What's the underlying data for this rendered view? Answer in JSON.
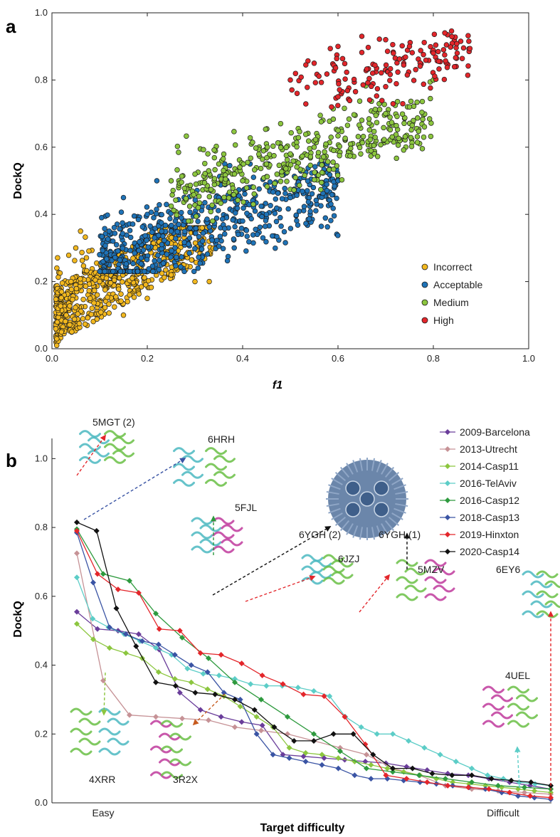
{
  "panels": [
    {
      "letter": "a",
      "type": "scatter",
      "xlabel": "f1",
      "ylabel": "DockQ",
      "xlim": [
        0,
        1
      ],
      "ylim": [
        0,
        1
      ],
      "xticks": [
        "0.0",
        "0.2",
        "0.4",
        "0.6",
        "0.8",
        "1.0"
      ],
      "yticks": [
        "0.0",
        "0.2",
        "0.4",
        "0.6",
        "0.8",
        "1.0"
      ],
      "legend_position": "bottom-right"
    },
    {
      "letter": "b",
      "type": "line",
      "xlabel": "Target difficulty",
      "ylabel": "DockQ",
      "x_tick_labels": [
        "Easy",
        "Difficult"
      ],
      "yticks": [
        "0.0",
        "0.2",
        "0.4",
        "0.6",
        "0.8",
        "1.0"
      ],
      "legend_position": "top-right"
    }
  ],
  "chart_data": [
    {
      "type": "scatter",
      "xlabel": "f1",
      "ylabel": "DockQ",
      "xlim": [
        0,
        1
      ],
      "ylim": [
        0,
        1
      ],
      "grid": false,
      "legend": "bottom-right",
      "series": [
        {
          "name": "Incorrect",
          "color": "#f2b81f",
          "count": 700,
          "sample_points": [
            [
              0.01,
              0.01
            ],
            [
              0.02,
              0.05
            ],
            [
              0.03,
              0.1
            ],
            [
              0.04,
              0.2
            ],
            [
              0.05,
              0.3
            ],
            [
              0.06,
              0.35
            ],
            [
              0.08,
              0.15
            ],
            [
              0.1,
              0.2
            ],
            [
              0.12,
              0.25
            ],
            [
              0.15,
              0.1
            ],
            [
              0.2,
              0.15
            ],
            [
              0.25,
              0.22
            ],
            [
              0.3,
              0.2
            ],
            [
              0.33,
              0.2
            ]
          ]
        },
        {
          "name": "Acceptable",
          "color": "#1f73b7",
          "count": 600,
          "sample_points": [
            [
              0.1,
              0.28
            ],
            [
              0.12,
              0.35
            ],
            [
              0.15,
              0.45
            ],
            [
              0.2,
              0.4
            ],
            [
              0.22,
              0.5
            ],
            [
              0.25,
              0.35
            ],
            [
              0.3,
              0.4
            ],
            [
              0.35,
              0.45
            ],
            [
              0.4,
              0.38
            ],
            [
              0.45,
              0.4
            ],
            [
              0.5,
              0.45
            ],
            [
              0.6,
              0.5
            ]
          ]
        },
        {
          "name": "Medium",
          "color": "#8cc63f",
          "count": 400,
          "sample_points": [
            [
              0.25,
              0.5
            ],
            [
              0.3,
              0.52
            ],
            [
              0.35,
              0.55
            ],
            [
              0.4,
              0.5
            ],
            [
              0.45,
              0.55
            ],
            [
              0.5,
              0.58
            ],
            [
              0.55,
              0.6
            ],
            [
              0.6,
              0.65
            ],
            [
              0.65,
              0.68
            ],
            [
              0.7,
              0.7
            ],
            [
              0.75,
              0.72
            ],
            [
              0.8,
              0.8
            ]
          ]
        },
        {
          "name": "High",
          "color": "#e3262b",
          "count": 150,
          "sample_points": [
            [
              0.5,
              0.8
            ],
            [
              0.55,
              0.85
            ],
            [
              0.6,
              0.9
            ],
            [
              0.65,
              0.93
            ],
            [
              0.7,
              0.92
            ],
            [
              0.75,
              0.9
            ],
            [
              0.8,
              0.88
            ],
            [
              0.85,
              0.88
            ],
            [
              0.6,
              0.75
            ],
            [
              0.7,
              0.78
            ]
          ]
        }
      ]
    },
    {
      "type": "line",
      "xlabel": "Target difficulty",
      "ylabel": "DockQ",
      "ylim": [
        0,
        1.05
      ],
      "x_tick_labels": [
        "Easy",
        "Difficult"
      ],
      "legend": "top-right",
      "series": [
        {
          "name": "2009-Barcelona",
          "color": "#6a3d9a",
          "marker": "diamond",
          "values": [
            0.555,
            0.505,
            0.5,
            0.49,
            0.445,
            0.32,
            0.27,
            0.25,
            0.235,
            0.225,
            0.14,
            0.135,
            0.13,
            0.125,
            0.12,
            0.115,
            0.105,
            0.095,
            0.085,
            0.08,
            0.07,
            0.06,
            0.05,
            0.04
          ]
        },
        {
          "name": "2013-Utrecht",
          "color": "#c69296",
          "marker": "diamond",
          "values": [
            0.725,
            0.355,
            0.255,
            0.25,
            0.245,
            0.24,
            0.22,
            0.21,
            0.2,
            0.18,
            0.16,
            0.14,
            0.1,
            0.08,
            0.05,
            0.04,
            0.035,
            0.03,
            0.025
          ]
        },
        {
          "name": "2014-Casp11",
          "color": "#8cc63f",
          "marker": "diamond",
          "values": [
            0.52,
            0.475,
            0.45,
            0.435,
            0.42,
            0.38,
            0.36,
            0.35,
            0.33,
            0.31,
            0.28,
            0.25,
            0.22,
            0.16,
            0.145,
            0.14,
            0.13,
            0.12,
            0.11,
            0.1,
            0.09,
            0.08,
            0.07,
            0.06,
            0.055,
            0.05,
            0.045,
            0.04,
            0.035,
            0.03
          ]
        },
        {
          "name": "2016-TelAviv",
          "color": "#5ccdc7",
          "marker": "diamond",
          "values": [
            0.655,
            0.535,
            0.51,
            0.49,
            0.47,
            0.45,
            0.43,
            0.39,
            0.375,
            0.37,
            0.36,
            0.345,
            0.34,
            0.34,
            0.335,
            0.325,
            0.31,
            0.25,
            0.22,
            0.2,
            0.2,
            0.18,
            0.16,
            0.14,
            0.12,
            0.1,
            0.08,
            0.07,
            0.06,
            0.055,
            0.05
          ]
        },
        {
          "name": "2016-Casp12",
          "color": "#2e9a3e",
          "marker": "diamond",
          "values": [
            0.795,
            0.665,
            0.645,
            0.55,
            0.48,
            0.42,
            0.35,
            0.3,
            0.25,
            0.2,
            0.15,
            0.1,
            0.09,
            0.08,
            0.07,
            0.06,
            0.05,
            0.045,
            0.04
          ]
        },
        {
          "name": "2018-Casp13",
          "color": "#3a54a4",
          "marker": "diamond",
          "values": [
            0.785,
            0.64,
            0.51,
            0.49,
            0.47,
            0.46,
            0.43,
            0.4,
            0.38,
            0.32,
            0.3,
            0.2,
            0.14,
            0.13,
            0.12,
            0.11,
            0.1,
            0.08,
            0.07,
            0.07,
            0.065,
            0.06,
            0.055,
            0.05,
            0.045,
            0.04,
            0.03,
            0.02,
            0.015,
            0.01
          ]
        },
        {
          "name": "2019-Hinxton",
          "color": "#e3262b",
          "marker": "diamond",
          "values": [
            0.79,
            0.665,
            0.62,
            0.61,
            0.505,
            0.5,
            0.435,
            0.43,
            0.405,
            0.37,
            0.345,
            0.315,
            0.31,
            0.25,
            0.17,
            0.08,
            0.07,
            0.06,
            0.05,
            0.045,
            0.04,
            0.03,
            0.02,
            0.015
          ]
        },
        {
          "name": "2020-Casp14",
          "color": "#111111",
          "marker": "diamond",
          "values": [
            0.815,
            0.79,
            0.565,
            0.455,
            0.35,
            0.34,
            0.32,
            0.315,
            0.3,
            0.27,
            0.22,
            0.18,
            0.18,
            0.2,
            0.2,
            0.14,
            0.1,
            0.1,
            0.085,
            0.08,
            0.08,
            0.07,
            0.065,
            0.06,
            0.05
          ]
        }
      ],
      "annotations": [
        {
          "label": "5MGT (2)",
          "arrow_color": "#e3262b"
        },
        {
          "label": "6HRH",
          "arrow_color": "#3a54a4"
        },
        {
          "label": "5FJL",
          "arrow_color": "#2e9a3e"
        },
        {
          "label": "6YGH (2)",
          "arrow_color": "#111111"
        },
        {
          "label": "6YGH (1)",
          "arrow_color": "#111111"
        },
        {
          "label": "6JZJ",
          "arrow_color": "#e3262b"
        },
        {
          "label": "5MZV",
          "arrow_color": "#e3262b"
        },
        {
          "label": "6EY6",
          "arrow_color": "#e3262b"
        },
        {
          "label": "4UEL",
          "arrow_color": "#5ccdc7"
        },
        {
          "label": "4XRR",
          "arrow_color": "#8cc63f"
        },
        {
          "label": "3R2X",
          "arrow_color": "#c65a1e"
        }
      ]
    }
  ]
}
